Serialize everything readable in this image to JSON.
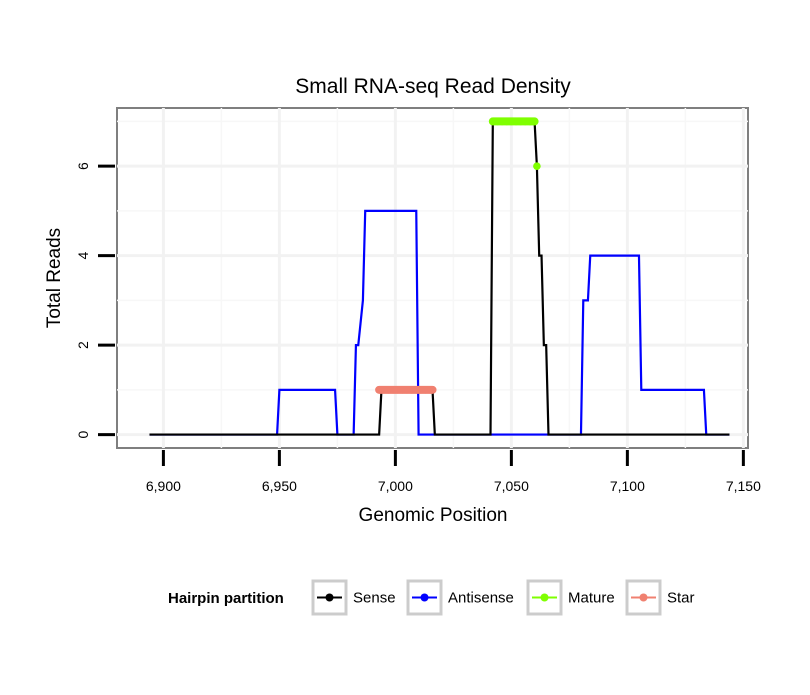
{
  "chart_data": {
    "type": "line",
    "title": "Small RNA-seq Read Density",
    "xlabel": "Genomic Position",
    "ylabel": "Total Reads",
    "xlim": [
      6880,
      7152
    ],
    "ylim": [
      -0.3,
      7.3
    ],
    "x_ticks": [
      6900,
      6950,
      7000,
      7050,
      7100,
      7150
    ],
    "x_tick_labels": [
      "6,900",
      "6,950",
      "7,000",
      "7,050",
      "7,100",
      "7,150"
    ],
    "y_ticks": [
      0,
      2,
      4,
      6
    ],
    "y_tick_labels": [
      "0",
      "2",
      "4",
      "6"
    ],
    "grid": true,
    "legend": {
      "title": "Hairpin partition",
      "position": "bottom",
      "entries": [
        "Sense",
        "Antisense",
        "Mature",
        "Star"
      ]
    },
    "series": [
      {
        "name": "Sense",
        "color": "#000000",
        "style": "line",
        "x": [
          6894,
          6993,
          6994,
          7016,
          7017,
          7041,
          7042,
          7060,
          7061,
          7062,
          7063,
          7064,
          7065,
          7066,
          7067,
          7144
        ],
        "y": [
          0,
          0,
          1,
          1,
          0,
          0,
          7,
          7,
          6,
          4,
          4,
          2,
          2,
          0,
          0,
          0
        ]
      },
      {
        "name": "Antisense",
        "color": "#0000ff",
        "style": "line",
        "x": [
          6894,
          6949,
          6950,
          6974,
          6975,
          6982,
          6983,
          6984,
          6986,
          6987,
          7009,
          7010,
          7080,
          7081,
          7083,
          7084,
          7105,
          7106,
          7133,
          7134,
          7144
        ],
        "y": [
          0,
          0,
          1,
          1,
          0,
          0,
          2,
          2,
          3,
          5,
          5,
          0,
          0,
          3,
          3,
          4,
          4,
          1,
          1,
          0,
          0
        ]
      },
      {
        "name": "Mature",
        "color": "#7fff00",
        "style": "points",
        "x": [
          7042,
          7044,
          7046,
          7048,
          7050,
          7052,
          7054,
          7056,
          7058,
          7060,
          7061
        ],
        "y": [
          7,
          7,
          7,
          7,
          7,
          7,
          7,
          7,
          7,
          7,
          6
        ]
      },
      {
        "name": "Star",
        "color": "#f08070",
        "style": "points",
        "x": [
          6993,
          6995,
          6997,
          6999,
          7001,
          7003,
          7005,
          7007,
          7009,
          7011,
          7013,
          7015,
          7016
        ],
        "y": [
          1,
          1,
          1,
          1,
          1,
          1,
          1,
          1,
          1,
          1,
          1,
          1,
          1
        ]
      }
    ]
  }
}
